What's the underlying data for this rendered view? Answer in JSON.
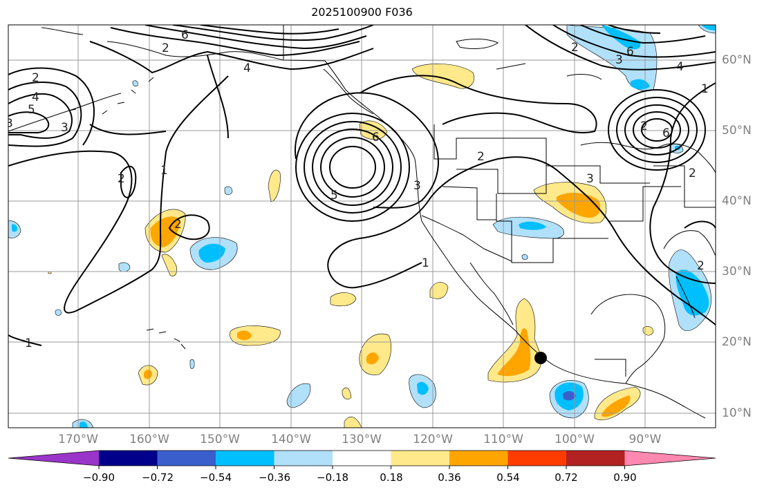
{
  "title": "2025100900 F036",
  "lat_labels": [
    "60°N",
    "50°N",
    "40°N",
    "30°N",
    "20°N",
    "10°N"
  ],
  "lon_labels": [
    "170°W",
    "160°W",
    "150°W",
    "140°W",
    "130°W",
    "120°W",
    "110°W",
    "100°W",
    "90°W"
  ],
  "colorbar": {
    "ticks": [
      "−0.90",
      "−0.72",
      "−0.54",
      "−0.36",
      "−0.18",
      "0.18",
      "0.36",
      "0.54",
      "0.72",
      "0.90"
    ],
    "colors": [
      "#9a35c9",
      "#00008b",
      "#3a5fcd",
      "#00bfff",
      "#b0e0fa",
      "#ffffff",
      "#ffe98a",
      "#ffa500",
      "#ff3c00",
      "#b22222",
      "#ff88b0"
    ]
  },
  "contour_labels": [
    {
      "text": "6",
      "slug": "6-a"
    },
    {
      "text": "2",
      "slug": "2-a"
    },
    {
      "text": "4",
      "slug": "4-a"
    },
    {
      "text": "2",
      "slug": "2-b"
    },
    {
      "text": "4",
      "slug": "4-b"
    },
    {
      "text": "5",
      "slug": "5-a"
    },
    {
      "text": "3",
      "slug": "3-a"
    },
    {
      "text": "3",
      "slug": "3-b"
    },
    {
      "text": "2",
      "slug": "2-c"
    },
    {
      "text": "1",
      "slug": "1-a"
    },
    {
      "text": "2",
      "slug": "2-d"
    },
    {
      "text": "6",
      "slug": "6-b"
    },
    {
      "text": "5",
      "slug": "5-b"
    },
    {
      "text": "3",
      "slug": "3-c"
    },
    {
      "text": "2",
      "slug": "2-e"
    },
    {
      "text": "1",
      "slug": "1-b"
    },
    {
      "text": "2",
      "slug": "2-f"
    },
    {
      "text": "6",
      "slug": "6-c"
    },
    {
      "text": "4",
      "slug": "4-c"
    },
    {
      "text": "3",
      "slug": "3-d"
    },
    {
      "text": "2",
      "slug": "2-g"
    },
    {
      "text": "6",
      "slug": "6-d"
    },
    {
      "text": "2",
      "slug": "2-h"
    },
    {
      "text": "3",
      "slug": "3-e"
    },
    {
      "text": "1",
      "slug": "1-c"
    },
    {
      "text": "1",
      "slug": "1-d"
    },
    {
      "text": "2",
      "slug": "2-i"
    }
  ],
  "marker": {
    "type": "dot",
    "color": "#000000"
  }
}
